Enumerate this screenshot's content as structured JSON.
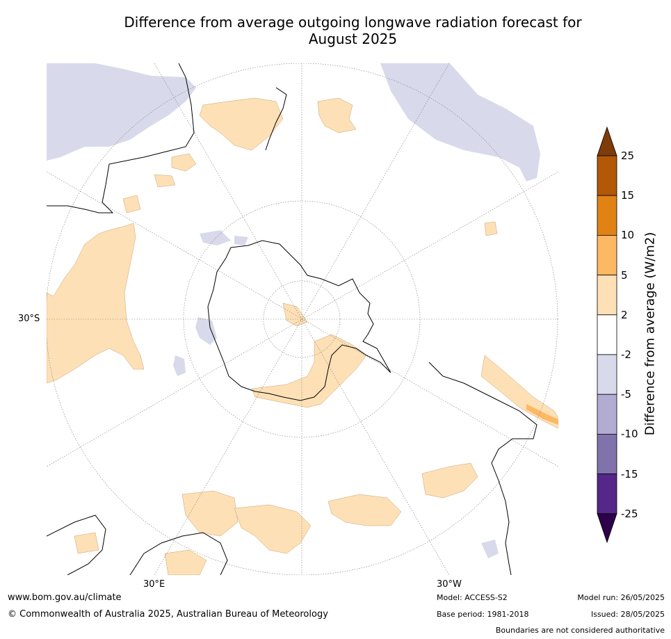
{
  "title_line1": "Difference from average outgoing longwave radiation forecast for",
  "title_line2": "August 2025",
  "axis_labels": {
    "left": "30°S",
    "bottom_left": "30°E",
    "bottom_right": "30°W"
  },
  "colorbar": {
    "label": "Difference from average (W/m2)",
    "ticks": [
      "25",
      "15",
      "10",
      "5",
      "2",
      "-2",
      "-5",
      "-10",
      "-15",
      "-25"
    ],
    "colors": [
      "#7f3b08",
      "#b35806",
      "#e08214",
      "#fdb863",
      "#fee0b6",
      "#ffffff",
      "#d8daeb",
      "#b2abd2",
      "#8073ac",
      "#542788",
      "#2d004b"
    ]
  },
  "footer": {
    "url": "www.bom.gov.au/climate",
    "copyright": "© Commonwealth of Australia 2025, Australian Bureau of Meteorology",
    "model": "Model: ACCESS-S2",
    "base_period": "Base period: 1981-2018",
    "model_run": "Model run: 26/05/2025",
    "issued": "Issued: 28/05/2025",
    "disclaimer": "Boundaries are not considered authoritative"
  }
}
